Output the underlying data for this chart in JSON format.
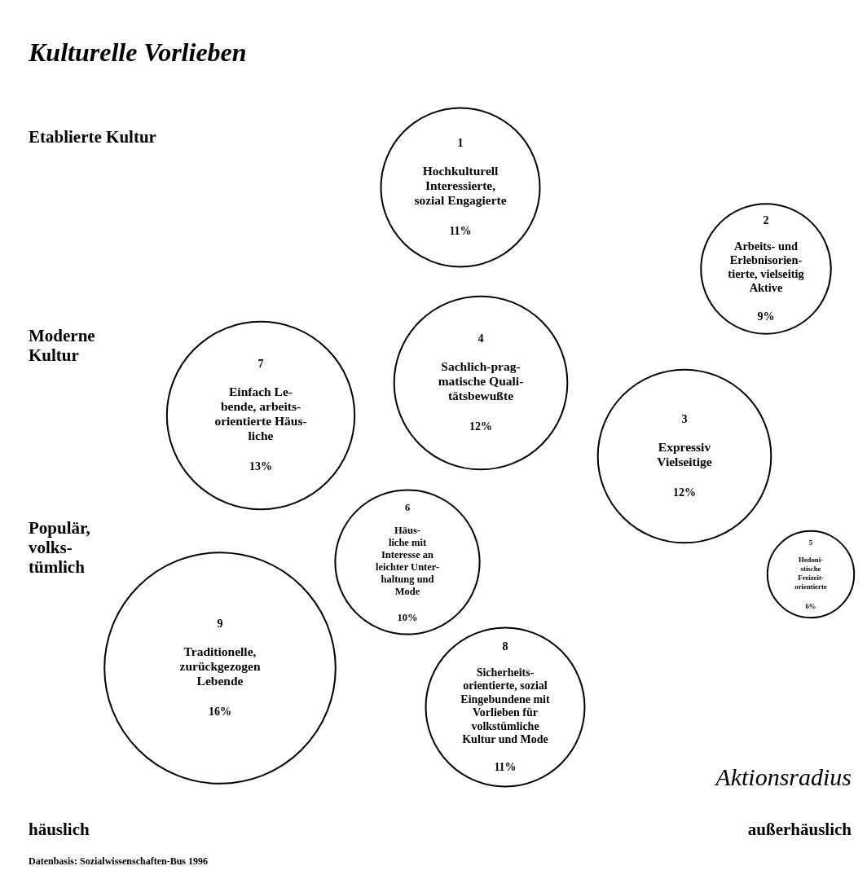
{
  "chart_data": {
    "type": "other",
    "title": "Kulturelle Vorlieben",
    "xlabel": "Aktionsradius",
    "color": "#000000",
    "categories": [
      "Hochkulturell\nInteressierte,\nsozial Engagierte",
      "Arbeits- und\nErlebnisorien-\ntierte, vielseitig\nAktive",
      "Expressiv\nVielseitige",
      "Sachlich-prag-\nmatische Quali-\ntätsbewußte",
      "Hedoni-\nstische\nFreizeit-\norientierte",
      "Häus-\nliche mit\nInteresse an\nleichter Unter-\nhaltung und\nMode",
      "Einfach Le-\nbende, arbeits-\norientierte Häus-\nliche",
      "Sicherheits-\norientierte, sozial\nEingebundene mit\nVorlieben für\nvolkstümliche\nKultur und Mode",
      "Traditionelle,\nzurückgezogen\nLebende"
    ],
    "values": [
      11,
      9,
      12,
      12,
      6,
      10,
      13,
      11,
      16
    ],
    "value_labels": [
      "11%",
      "9%",
      "12%",
      "12%",
      "6%",
      "10%",
      "13%",
      "11%",
      "16%"
    ],
    "annotations": [
      "Etablierte Kultur",
      "Moderne\nKultur",
      "Populär,\nvolks-\ntümlich",
      "häuslich",
      "außerhäuslich",
      "Datenbasis: Sozialwissenschaften-Bus 1996",
      "1",
      "2",
      "3",
      "4",
      "5",
      "6",
      "7",
      "8",
      "9"
    ]
  }
}
